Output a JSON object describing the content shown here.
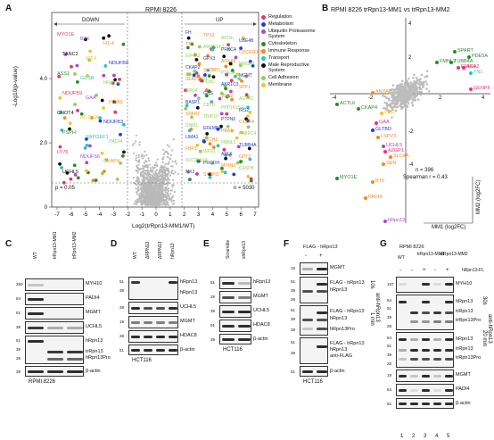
{
  "panels": {
    "A": {
      "letter": "A",
      "title": "RPMI 8226",
      "down_label": "DOWN",
      "up_label": "UP",
      "y_axis_label": "-Log10(p-value)",
      "x_axis_label": "Log2(trRpn13-MM1/WT)",
      "pval_note": "p = 0.05",
      "n_note": "n = 5030",
      "x_ticks": [
        "-7",
        "-6",
        "-5",
        "-4",
        "-3",
        "-2",
        "-1",
        "0",
        "1",
        "2",
        "3",
        "4",
        "5",
        "6",
        "7"
      ],
      "y_ticks": [
        "0",
        "2.0",
        "4.0"
      ],
      "legend": [
        {
          "label": "Regulation",
          "color": "#e8356b"
        },
        {
          "label": "Metabolism",
          "color": "#1f3bd1"
        },
        {
          "label": "Ubiquitin Proteasome System",
          "color": "#a64ac9"
        },
        {
          "label": "Cytoskeleton",
          "color": "#2b8a2b"
        },
        {
          "label": "Immune Response",
          "color": "#f08a1c"
        },
        {
          "label": "Transport",
          "color": "#31c0c8"
        },
        {
          "label": "Male Reproductive System",
          "color": "#111111"
        },
        {
          "label": "Cell Adhesion",
          "color": "#8fd14f"
        },
        {
          "label": "Membrane",
          "color": "#f2c230"
        }
      ],
      "genes_left": [
        "MYO1E",
        "BTK",
        "H1-4",
        "TANC2",
        "IRF4",
        "NDUFB8",
        "ASS1",
        "GUSB",
        "hRpn13",
        "NDUFB9",
        "GAA",
        "PDIA5",
        "CNOT4",
        "ACTL6A",
        "NDUFB3",
        "PSPH",
        "RAPGEF1",
        "PADI4",
        "LY75",
        "NDUFS6",
        "CKAP4",
        "UCHL5"
      ],
      "genes_right": [
        "FH",
        "TPX2",
        "APOE",
        "UBE4B",
        "TTK",
        "ARHGEF2",
        "PRKCA",
        "CDC42EP1",
        "EIF4A2",
        "GPX3",
        "ANXA8",
        "HMGA1",
        "CKAP2",
        "SH3BP1",
        "PDE5A",
        "MGMT",
        "SERPINC1",
        "FLNC",
        "AKR1C3",
        "SPP1",
        "BRD4",
        "GNS",
        "VNN2",
        "AGTR1",
        "BASP1",
        "CD70",
        "PPP1R15A",
        "IRS2",
        "SPART",
        "TRIP10",
        "PTPN6",
        "CXCR4",
        "DNM1",
        "EFEMP1",
        "HBA1",
        "PABPC4",
        "LIMA1",
        "PLCH1",
        "FMNL2",
        "TUBB4A",
        "FBP1",
        "WFS1",
        "ARL6",
        "GPT2",
        "SLC39A14",
        "PRODH",
        "MYH10",
        "CASP8",
        "MX2",
        "SYNPO"
      ]
    },
    "B": {
      "letter": "B",
      "title": "RPMI 8226 trRpn13-MM1 vs trRpn13-MM2",
      "x_axis_label": "MM1 (log2FC)",
      "y_axis_label": "MM2 (log2FC)",
      "n_note": "n = 396",
      "r_note": "Spearman r = 0.43",
      "ticks_x": [
        "-4",
        "-2",
        "2",
        "4"
      ],
      "ticks_y": [
        "4",
        "2",
        "-2",
        "-4"
      ],
      "genes": [
        "SPART",
        "PDE5A",
        "FMNL2",
        "TUBB4A",
        "EEF1A2",
        "AK4",
        "TN1",
        "GENPF",
        "ANXA8",
        "ACTL6",
        "CKAP4",
        "PHI2",
        "GAA",
        "GLTBD",
        "LSPV3",
        "UCHL5",
        "AZGP1",
        "SLC4A",
        "SEN",
        "MYO1E",
        "BTK",
        "PADI4",
        "hRpn13"
      ]
    },
    "C": {
      "letter": "C",
      "lanes": [
        "WT",
        "trRpn13-MM1",
        "trRpn13-MM2"
      ],
      "kda": [
        "250",
        "64",
        "51",
        "39",
        "51",
        "39",
        "28",
        "39"
      ],
      "bands": [
        "MYH10",
        "PADI4",
        "MGMT",
        "UCHL5",
        "hRpn13",
        "trRpn13",
        "hRpn13Pro",
        "β-actin"
      ],
      "caption": "RPMI 8226"
    },
    "D": {
      "letter": "D",
      "lanes": [
        "WT",
        "ΔRPN13",
        "ΔRPN13",
        "hRpn13"
      ],
      "kda": [
        "51",
        "39",
        "28",
        "19",
        "28",
        "51",
        "39"
      ],
      "bands": [
        "hRpn13",
        "hRpn13",
        "UCHL5",
        "MGMT",
        "HDAC8",
        "β-actin"
      ],
      "caption": "HCT116"
    },
    "E": {
      "letter": "E",
      "lanes": [
        "Scramble",
        "shRpn13"
      ],
      "kda": [
        "51",
        "39",
        "28",
        "39",
        "51",
        "39"
      ],
      "bands": [
        "hRpn13",
        "MGMT",
        "UCHL5",
        "HDAC8",
        "β-actin"
      ],
      "caption": "HCT116"
    },
    "F": {
      "letter": "F",
      "header": "FLAG - hRpn13",
      "lane_signs": [
        "-",
        "+"
      ],
      "kda": [
        "19",
        "51",
        "39",
        "28",
        "51",
        "39",
        "28",
        "51",
        "39",
        "51",
        "39"
      ],
      "bands": [
        "MGMT",
        "FLAG - hRpn13",
        "hRpn13",
        "FLAG - hRpn13",
        "hRpn13",
        "hRpn13Pro",
        "FLAG - hRpn13",
        "hRpn13",
        "anti-FLAG",
        "β-actin"
      ],
      "exposure_labels": [
        "10s",
        "1 min",
        "anti-hRpn13"
      ],
      "caption": "HCT116"
    },
    "G": {
      "letter": "G",
      "header": "RPMI 8226",
      "lanes": [
        "WT",
        "trRpn13-MM1",
        "trRpn13-MM2"
      ],
      "extra_lane": "hRpn13-FL",
      "lane_signs": [
        "-",
        "-",
        "+",
        "-",
        "+"
      ],
      "kda": [
        "197",
        "64",
        "51",
        "39",
        "28",
        "64",
        "51",
        "39",
        "28",
        "19",
        "64",
        "51"
      ],
      "bands": [
        "MYH10",
        "hRpn13",
        "trRpn13",
        "trRpn13Pro",
        "hRpn13",
        "trRpn13",
        "trRpn13Pro",
        "MGMT",
        "PADI4",
        "β-actin"
      ],
      "exposure_labels": [
        "30s",
        "20 min",
        "anti-hRpn13"
      ],
      "lane_numbers": [
        "1",
        "2",
        "3",
        "4",
        "5"
      ]
    }
  }
}
